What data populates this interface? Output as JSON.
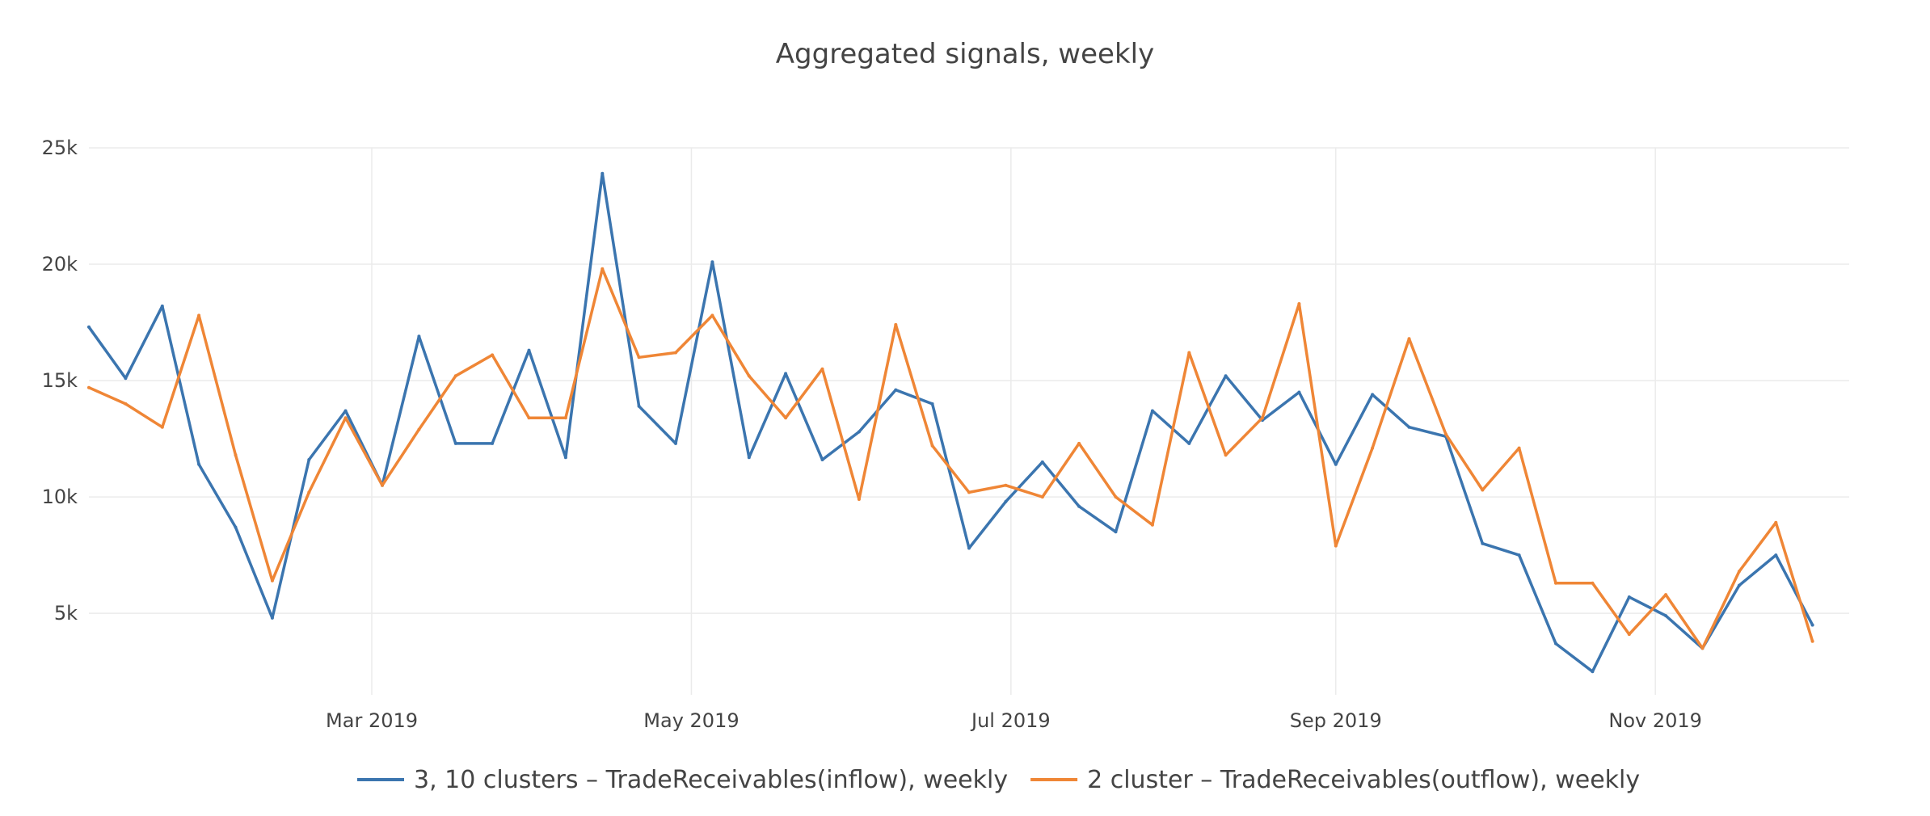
{
  "chart_data": {
    "type": "line",
    "title": "Aggregated signals, weekly",
    "xlabel": "",
    "ylabel": "",
    "x_start": "2019-01-06",
    "x_step_days": 7,
    "xlim": [
      "2019-01-06",
      "2019-12-08"
    ],
    "ylim": [
      1500,
      25000
    ],
    "y_ticks": [
      5000,
      10000,
      15000,
      20000,
      25000
    ],
    "y_tick_labels": [
      "5k",
      "10k",
      "15k",
      "20k",
      "25k"
    ],
    "x_ticks": [
      "2019-03-01",
      "2019-05-01",
      "2019-07-01",
      "2019-09-01",
      "2019-11-01"
    ],
    "x_tick_labels": [
      "Mar 2019",
      "May 2019",
      "Jul 2019",
      "Sep 2019",
      "Nov 2019"
    ],
    "grid": true,
    "legend_position": "bottom-center",
    "series": [
      {
        "name": "3, 10 clusters – TradeReceivables(inflow), weekly",
        "color": "#3b75af",
        "values": [
          17300,
          15100,
          18200,
          11400,
          8700,
          4800,
          11600,
          13700,
          10500,
          16900,
          12300,
          12300,
          16300,
          11700,
          23900,
          13900,
          12300,
          20100,
          11700,
          15300,
          11600,
          12800,
          14600,
          14000,
          7800,
          9800,
          11500,
          9600,
          8500,
          13700,
          12300,
          15200,
          13300,
          14500,
          11400,
          14400,
          13000,
          12600,
          8000,
          7500,
          3700,
          2500,
          5700,
          4900,
          3500,
          6200,
          7500,
          4500
        ]
      },
      {
        "name": "2 cluster – TradeReceivables(outflow), weekly",
        "color": "#ef8636",
        "values": [
          14700,
          14000,
          13000,
          17800,
          11800,
          6400,
          10200,
          13400,
          10500,
          12900,
          15200,
          16100,
          13400,
          13400,
          19800,
          16000,
          16200,
          17800,
          15200,
          13400,
          15500,
          9900,
          17400,
          12200,
          10200,
          10500,
          10000,
          12300,
          10000,
          8800,
          16200,
          11800,
          13400,
          18300,
          7900,
          12100,
          16800,
          12700,
          10300,
          12100,
          6300,
          6300,
          4100,
          5800,
          3500,
          6800,
          8900,
          3800
        ]
      }
    ]
  }
}
